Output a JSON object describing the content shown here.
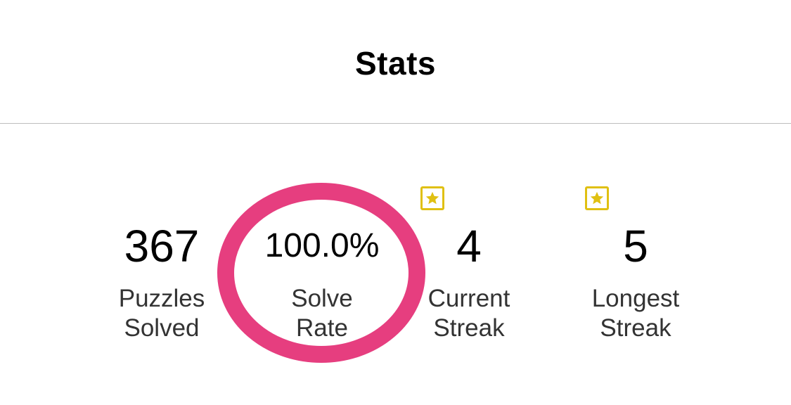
{
  "header": {
    "title": "Stats"
  },
  "stats": [
    {
      "value": "367",
      "label": "Puzzles\nSolved",
      "badge": null
    },
    {
      "value": "100.0%",
      "label": "Solve\nRate",
      "badge": null
    },
    {
      "value": "4",
      "label": "Current\nStreak",
      "badge": "star-icon"
    },
    {
      "value": "5",
      "label": "Longest\nStreak",
      "badge": "star-icon"
    }
  ],
  "colors": {
    "badge": "#e0c012",
    "highlight_ring": "#e63e7f",
    "divider": "#bdbdbd",
    "label_text": "#333333"
  },
  "annotation": {
    "highlighted_stat": "Solve Rate"
  }
}
